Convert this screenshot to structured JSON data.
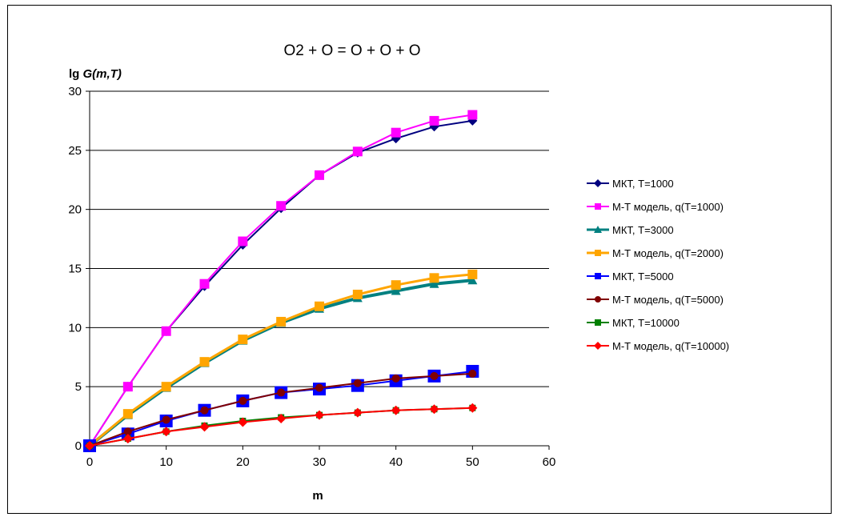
{
  "chart_data": {
    "type": "line",
    "title": "O2 + O = O + O + O",
    "ylabel_prefix": "lg ",
    "ylabel_italic": "G(m,T)",
    "xlabel": "m",
    "xlim": [
      0,
      60
    ],
    "ylim": [
      0,
      30
    ],
    "xticks": [
      "0",
      "10",
      "20",
      "30",
      "40",
      "50",
      "60"
    ],
    "yticks": [
      "0",
      "5",
      "10",
      "15",
      "20",
      "25",
      "30"
    ],
    "grid": "horizontal",
    "legend_position": "right",
    "x": [
      0,
      5,
      10,
      15,
      20,
      25,
      30,
      35,
      40,
      45,
      50
    ],
    "series": [
      {
        "name": "МКТ, T=1000",
        "color": "#000080",
        "marker": "diamond",
        "values": [
          0,
          5.0,
          9.7,
          13.5,
          17.0,
          20.1,
          22.9,
          24.8,
          26.0,
          27.0,
          27.5
        ]
      },
      {
        "name": "М-Т модель, q(T=1000)",
        "color": "#FF00FF",
        "marker": "square",
        "values": [
          0,
          5.0,
          9.7,
          13.7,
          17.3,
          20.3,
          22.9,
          24.9,
          26.5,
          27.5,
          28.0
        ]
      },
      {
        "name": "МКТ, T=3000",
        "color": "#008080",
        "marker": "triangle",
        "values": [
          0,
          2.6,
          4.9,
          7.0,
          8.9,
          10.4,
          11.6,
          12.5,
          13.1,
          13.7,
          14.0
        ]
      },
      {
        "name": "М-Т модель, q(T=2000)",
        "color": "#FFA500",
        "marker": "square",
        "values": [
          0,
          2.7,
          5.0,
          7.1,
          9.0,
          10.5,
          11.8,
          12.8,
          13.6,
          14.2,
          14.5
        ]
      },
      {
        "name": "МКТ, T=5000",
        "color": "#0000FF",
        "marker": "square",
        "values": [
          0,
          1.0,
          2.1,
          3.0,
          3.8,
          4.5,
          4.8,
          5.1,
          5.5,
          5.9,
          6.3
        ]
      },
      {
        "name": "М-Т модель, q(T=5000)",
        "color": "#800000",
        "marker": "circle",
        "values": [
          0,
          1.2,
          2.2,
          3.0,
          3.8,
          4.5,
          4.9,
          5.3,
          5.7,
          5.9,
          6.1
        ]
      },
      {
        "name": "МКТ, T=10000",
        "color": "#008000",
        "marker": "square",
        "values": [
          0,
          0.6,
          1.2,
          1.7,
          2.1,
          2.4,
          2.6,
          2.8,
          3.0,
          3.1,
          3.2
        ]
      },
      {
        "name": "М-Т модель, q(T=10000)",
        "color": "#FF0000",
        "marker": "diamond",
        "values": [
          0,
          0.6,
          1.2,
          1.6,
          2.0,
          2.3,
          2.6,
          2.8,
          3.0,
          3.1,
          3.2
        ]
      }
    ]
  }
}
